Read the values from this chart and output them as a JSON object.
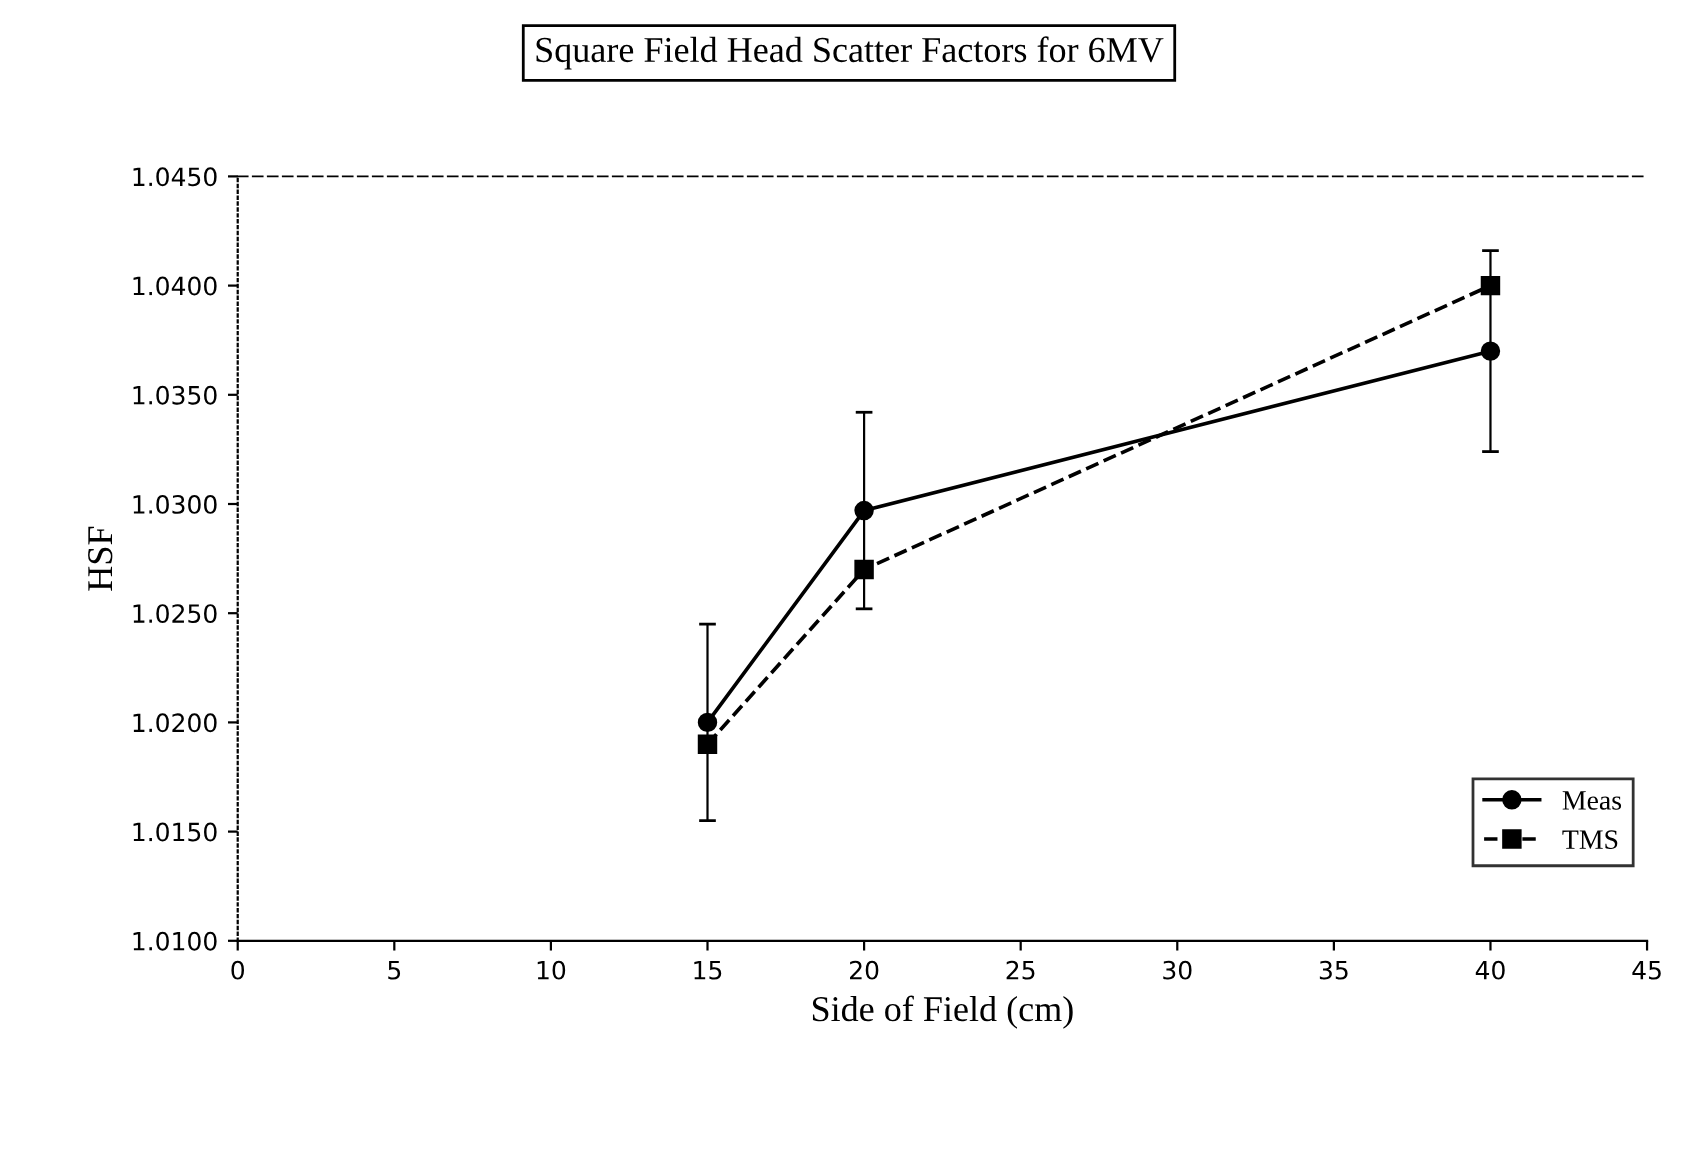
{
  "chart_data": {
    "type": "line",
    "title": "Square Field Head Scatter Factors for 6MV",
    "xlabel": "Side of Field (cm)",
    "ylabel": "HSF",
    "x": [
      15,
      20,
      40
    ],
    "series": [
      {
        "name": "Meas",
        "color": "#000000",
        "values": [
          1.02,
          1.0297,
          1.037
        ],
        "errors": [
          0.0045,
          0.0045,
          0.0046
        ],
        "marker": "circle",
        "line_style": "solid"
      },
      {
        "name": "TMS",
        "color": "#000000",
        "values": [
          1.019,
          1.027,
          1.04
        ],
        "marker": "square",
        "line_style": "dashed"
      }
    ],
    "xlim": [
      0,
      45
    ],
    "xticks": [
      0,
      5,
      10,
      15,
      20,
      25,
      30,
      35,
      40,
      45
    ],
    "ylim": [
      1.01,
      1.045
    ],
    "yticks": [
      {
        "value": 1.01,
        "label": "1.0100"
      },
      {
        "value": 1.015,
        "label": "1.0150"
      },
      {
        "value": 1.02,
        "label": "1.0200"
      },
      {
        "value": 1.025,
        "label": "1.0250"
      },
      {
        "value": 1.03,
        "label": "1.0300"
      },
      {
        "value": 1.035,
        "label": "1.0350"
      },
      {
        "value": 1.04,
        "label": "1.0400"
      },
      {
        "value": 1.045,
        "label": "1.0450"
      }
    ],
    "grid": false,
    "legend": "bottom right"
  }
}
